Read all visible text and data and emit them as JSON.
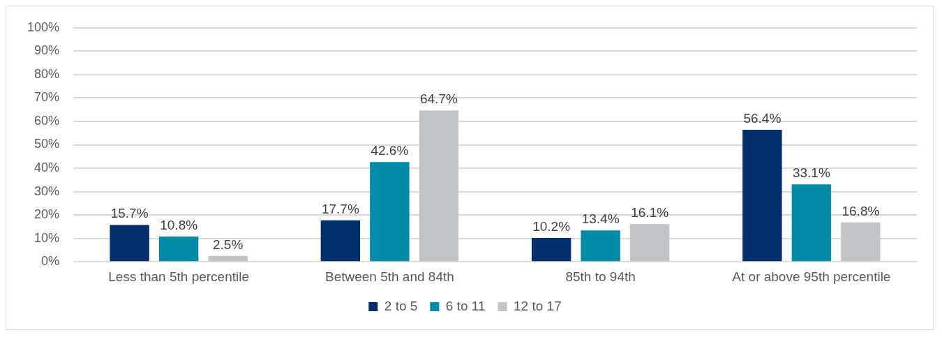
{
  "chart_data": {
    "type": "bar",
    "categories": [
      "Less than 5th percentile",
      "Between 5th and 84th",
      "85th to 94th",
      "At or above 95th percentile"
    ],
    "series": [
      {
        "name": "2 to 5",
        "color": "#002f6c",
        "values": [
          15.7,
          17.7,
          10.2,
          56.4
        ],
        "value_labels": [
          "15.7%",
          "17.7%",
          "10.2%",
          "56.4%"
        ]
      },
      {
        "name": "6 to 11",
        "color": "#008ca8",
        "values": [
          10.8,
          42.6,
          13.4,
          33.1
        ],
        "value_labels": [
          "10.8%",
          "42.6%",
          "13.4%",
          "33.1%"
        ]
      },
      {
        "name": "12 to 17",
        "color": "#c1c5c8",
        "values": [
          2.5,
          64.7,
          16.1,
          16.8
        ],
        "value_labels": [
          "2.5%",
          "64.7%",
          "16.1%",
          "16.8%"
        ]
      }
    ],
    "ylim": [
      0,
      100
    ],
    "yticks": [
      {
        "value": 0,
        "label": "0%"
      },
      {
        "value": 10,
        "label": "10%"
      },
      {
        "value": 20,
        "label": "20%"
      },
      {
        "value": 30,
        "label": "30%"
      },
      {
        "value": 40,
        "label": "40%"
      },
      {
        "value": 50,
        "label": "50%"
      },
      {
        "value": 60,
        "label": "60%"
      },
      {
        "value": 70,
        "label": "70%"
      },
      {
        "value": 80,
        "label": "80%"
      },
      {
        "value": 90,
        "label": "90%"
      },
      {
        "value": 100,
        "label": "100%"
      }
    ],
    "grid": "y",
    "legend": "bottom"
  }
}
